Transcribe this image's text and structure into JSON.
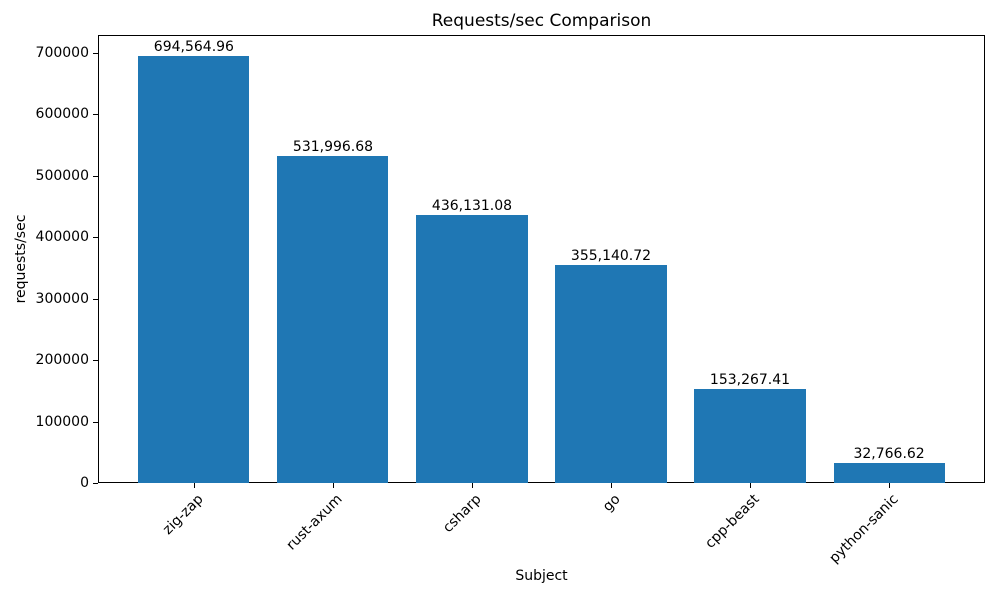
{
  "chart_data": {
    "type": "bar",
    "title": "Requests/sec Comparison",
    "xlabel": "Subject",
    "ylabel": "requests/sec",
    "categories": [
      "zig-zap",
      "rust-axum",
      "csharp",
      "go",
      "cpp-beast",
      "python-sanic"
    ],
    "values": [
      694564.96,
      531996.68,
      436131.08,
      355140.72,
      153267.41,
      32766.62
    ],
    "bar_labels": [
      "694,564.96",
      "531,996.68",
      "436,131.08",
      "355,140.72",
      "153,267.41",
      "32,766.62"
    ],
    "ylim": [
      0,
      729293
    ],
    "yticks": [
      0,
      100000,
      200000,
      300000,
      400000,
      500000,
      600000,
      700000
    ],
    "ytick_labels": [
      "0",
      "100000",
      "200000",
      "300000",
      "400000",
      "500000",
      "600000",
      "700000"
    ],
    "bar_color": "#1f77b4",
    "background_color": "#ffffff",
    "grid": false,
    "legend": null,
    "x_tick_rotation_deg": 45
  }
}
